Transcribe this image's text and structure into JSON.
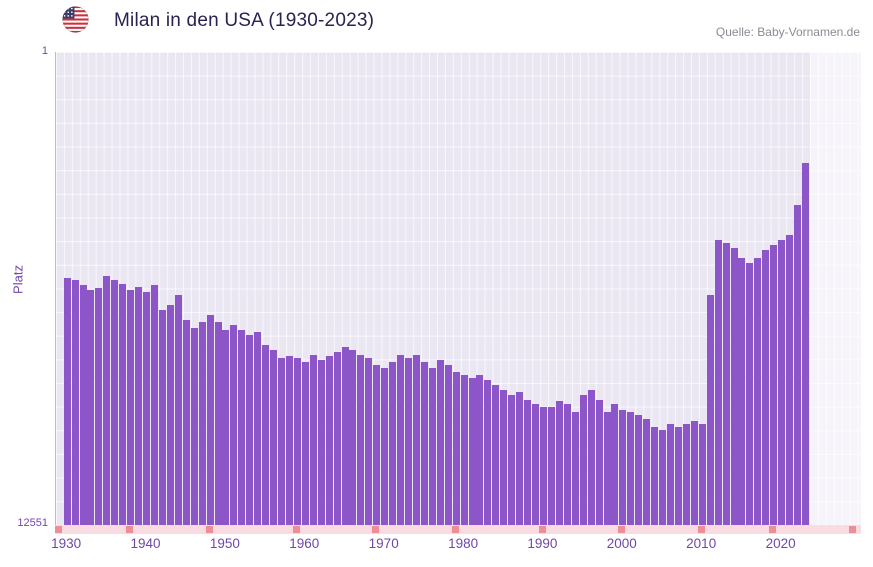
{
  "header": {
    "title": "Milan in den USA (1930-2023)",
    "source": "Quelle: Baby-Vornamen.de",
    "flag_icon": "us-flag"
  },
  "chart_data": {
    "type": "bar",
    "title": "Milan in den USA (1930-2023)",
    "xlabel": "",
    "ylabel": "Platz",
    "legend": "none",
    "grid": true,
    "y_axis": {
      "top_label": "1",
      "bottom_label": "12551",
      "min": 1,
      "max": 12551,
      "inverted": true
    },
    "x_ticks": [
      1930,
      1940,
      1950,
      1960,
      1970,
      1980,
      1990,
      2000,
      2010,
      2020
    ],
    "x_range": [
      1928.6,
      2030.0
    ],
    "strip_marker_years": [
      1929,
      1938,
      1948,
      1959,
      1969,
      1979,
      1990,
      2000,
      2010,
      2019,
      2029
    ],
    "years": [
      1930,
      1931,
      1932,
      1933,
      1934,
      1935,
      1936,
      1937,
      1938,
      1939,
      1940,
      1941,
      1942,
      1943,
      1944,
      1945,
      1946,
      1947,
      1948,
      1949,
      1950,
      1951,
      1952,
      1953,
      1954,
      1955,
      1956,
      1957,
      1958,
      1959,
      1960,
      1961,
      1962,
      1963,
      1964,
      1965,
      1966,
      1967,
      1968,
      1969,
      1970,
      1971,
      1972,
      1973,
      1974,
      1975,
      1976,
      1977,
      1978,
      1979,
      1980,
      1981,
      1982,
      1983,
      1984,
      1985,
      1986,
      1987,
      1988,
      1989,
      1990,
      1991,
      1992,
      1993,
      1994,
      1995,
      1996,
      1997,
      1998,
      1999,
      2000,
      2001,
      2002,
      2003,
      2004,
      2005,
      2006,
      2007,
      2008,
      2009,
      2010,
      2011,
      2012,
      2013,
      2014,
      2015,
      2016,
      2017,
      2018,
      2019,
      2020,
      2021,
      2022,
      2023
    ],
    "ranks": [
      5990,
      6040,
      6190,
      6310,
      6260,
      5940,
      6060,
      6160,
      6310,
      6230,
      6360,
      6180,
      6840,
      6710,
      6440,
      7110,
      7320,
      7160,
      6970,
      7160,
      7370,
      7240,
      7370,
      7500,
      7420,
      7770,
      7900,
      8110,
      8060,
      8110,
      8220,
      8030,
      8160,
      8060,
      7950,
      7840,
      7900,
      8030,
      8110,
      8300,
      8380,
      8220,
      8030,
      8110,
      8030,
      8220,
      8380,
      8160,
      8300,
      8480,
      8560,
      8640,
      8560,
      8700,
      8830,
      8960,
      9090,
      9010,
      9220,
      9350,
      9430,
      9430,
      9270,
      9350,
      9540,
      9090,
      8960,
      9220,
      9540,
      9350,
      9490,
      9540,
      9620,
      9750,
      9960,
      10020,
      9880,
      9960,
      9880,
      9800,
      9880,
      6450,
      4990,
      5070,
      5200,
      5470,
      5600,
      5470,
      5260,
      5120,
      4990,
      4860,
      4060,
      2950
    ],
    "colors": {
      "bar": "#8c55c8",
      "plot_background": "#eae7f3",
      "gridline": "#ffffff",
      "title_text": "#2c2150",
      "axis_text": "#7346aa",
      "source_text": "#8b8b96",
      "strip_background": "#f9dce2",
      "strip_marker": "#ee8d95"
    }
  }
}
